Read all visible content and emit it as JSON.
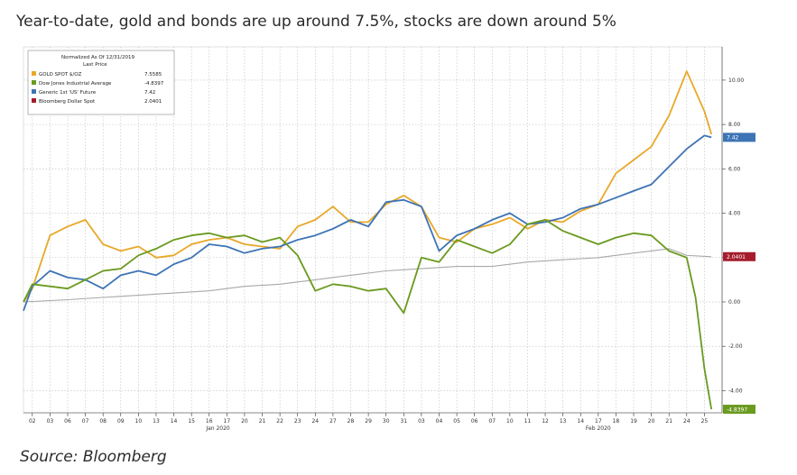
{
  "headline": "Year-to-date, gold and bonds are up around 7.5%, stocks are down around 5%",
  "source": "Source: Bloomberg",
  "chart_data": {
    "type": "line",
    "legend": {
      "title_line1": "Normalized As Of 12/31/2019",
      "title_line2": "Last Price",
      "placement": "top-left",
      "entries": [
        {
          "name": "GOLD SPOT $/OZ",
          "value": "7.5585",
          "color": "#e8a828"
        },
        {
          "name": "Dow Jones Industrial Average",
          "value": "-4.8397",
          "color": "#6a9a1f"
        },
        {
          "name": "Generic 1st 'US' Future",
          "value": "7.42",
          "color": "#3d74b5"
        },
        {
          "name": "Bloomberg Dollar Spot",
          "value": "2.0401",
          "color": "#a51d2d"
        }
      ]
    },
    "y_axis": {
      "ticks": [
        "10.00",
        "8.00",
        "6.00",
        "4.00",
        "2.00",
        "0.00",
        "-2.00",
        "-4.00"
      ],
      "values": [
        10,
        8,
        6,
        4,
        2,
        0,
        -2,
        -4
      ],
      "ylim": [
        -5,
        11.5
      ],
      "side": "right",
      "grid": true
    },
    "x_axis": {
      "tick_labels": [
        "02",
        "03",
        "06",
        "07",
        "08",
        "09",
        "10",
        "13",
        "14",
        "15",
        "16",
        "17",
        "20",
        "21",
        "22",
        "23",
        "24",
        "27",
        "28",
        "29",
        "30",
        "31",
        "03",
        "04",
        "05",
        "06",
        "07",
        "10",
        "11",
        "12",
        "13",
        "14",
        "17",
        "18",
        "19",
        "20",
        "21",
        "24",
        "25"
      ],
      "month_labels": [
        {
          "label": "Jan 2020",
          "index": 10.5
        },
        {
          "label": "Feb 2020",
          "index": 32
        }
      ],
      "index_range": [
        -0.5,
        39
      ]
    },
    "last_value_badges": [
      {
        "series": "GOLD SPOT $/OZ",
        "text": "",
        "color": "#e8a828",
        "value": 7.5585
      },
      {
        "series": "Generic 1st 'US' Future",
        "text": "7.42",
        "color": "#3d74b5",
        "value": 7.42
      },
      {
        "series": "Bloomberg Dollar Spot",
        "text": "2.0401",
        "color": "#a51d2d",
        "value": 2.0401
      },
      {
        "series": "Dow Jones Industrial Average",
        "text": "-4.8397",
        "color": "#6a9a1f",
        "value": -4.8397
      }
    ],
    "series": [
      {
        "name": "GOLD SPOT $/OZ",
        "color": "#e8a828",
        "x": [
          -0.5,
          0,
          1,
          2,
          3,
          4,
          5,
          6,
          7,
          8,
          9,
          10,
          11,
          12,
          13,
          14,
          15,
          16,
          17,
          18,
          19,
          20,
          21,
          22,
          23,
          24,
          25,
          26,
          27,
          28,
          29,
          30,
          31,
          32,
          33,
          34,
          35,
          36,
          37,
          38,
          38.4
        ],
        "values": [
          0,
          0.6,
          3.0,
          3.4,
          3.7,
          2.6,
          2.3,
          2.5,
          2.0,
          2.1,
          2.6,
          2.8,
          2.9,
          2.6,
          2.5,
          2.4,
          3.4,
          3.7,
          4.3,
          3.6,
          3.6,
          4.4,
          4.8,
          4.3,
          2.9,
          2.7,
          3.3,
          3.5,
          3.8,
          3.3,
          3.7,
          3.6,
          4.1,
          4.4,
          5.8,
          6.4,
          7.0,
          8.4,
          10.4,
          8.6,
          7.5585
        ]
      },
      {
        "name": "Dow Jones Industrial Average",
        "color": "#6a9a1f",
        "x": [
          -0.5,
          0,
          1,
          2,
          3,
          4,
          5,
          6,
          7,
          8,
          9,
          10,
          11,
          12,
          13,
          14,
          15,
          16,
          17,
          18,
          19,
          20,
          21,
          22,
          23,
          24,
          25,
          26,
          27,
          28,
          29,
          30,
          31,
          32,
          33,
          34,
          35,
          36,
          37,
          37.5,
          38,
          38.4
        ],
        "values": [
          0,
          0.8,
          0.7,
          0.6,
          1.0,
          1.4,
          1.5,
          2.1,
          2.4,
          2.8,
          3.0,
          3.1,
          2.9,
          3.0,
          2.7,
          2.9,
          2.1,
          0.5,
          0.8,
          0.7,
          0.5,
          0.6,
          -0.5,
          2.0,
          1.8,
          2.8,
          2.5,
          2.2,
          2.6,
          3.5,
          3.7,
          3.2,
          2.9,
          2.6,
          2.9,
          3.1,
          3.0,
          2.3,
          2.0,
          0.2,
          -3.0,
          -4.8397
        ]
      },
      {
        "name": "Generic 1st 'US' Future",
        "color": "#3d74b5",
        "x": [
          -0.5,
          0,
          1,
          2,
          3,
          4,
          5,
          6,
          7,
          8,
          9,
          10,
          11,
          12,
          13,
          14,
          15,
          16,
          17,
          18,
          19,
          20,
          21,
          22,
          23,
          24,
          25,
          26,
          27,
          28,
          29,
          30,
          31,
          32,
          33,
          34,
          35,
          36,
          37,
          38,
          38.4
        ],
        "values": [
          -0.4,
          0.7,
          1.4,
          1.1,
          1.0,
          0.6,
          1.2,
          1.4,
          1.2,
          1.7,
          2.0,
          2.6,
          2.5,
          2.2,
          2.4,
          2.5,
          2.8,
          3.0,
          3.3,
          3.7,
          3.4,
          4.5,
          4.6,
          4.3,
          2.3,
          3.0,
          3.3,
          3.7,
          4.0,
          3.5,
          3.6,
          3.8,
          4.2,
          4.4,
          4.7,
          5.0,
          5.3,
          6.1,
          6.9,
          7.5,
          7.42
        ]
      },
      {
        "name": "Bloomberg Dollar Spot",
        "color": "#a8a8a8",
        "x": [
          -0.5,
          2,
          4,
          6,
          8,
          10,
          12,
          14,
          16,
          18,
          20,
          22,
          24,
          26,
          28,
          30,
          32,
          34,
          35,
          36,
          37,
          38.4
        ],
        "values": [
          0.0,
          0.1,
          0.2,
          0.3,
          0.4,
          0.5,
          0.7,
          0.8,
          1.0,
          1.2,
          1.4,
          1.5,
          1.6,
          1.6,
          1.8,
          1.9,
          2.0,
          2.2,
          2.3,
          2.4,
          2.1,
          2.0401
        ]
      }
    ]
  }
}
